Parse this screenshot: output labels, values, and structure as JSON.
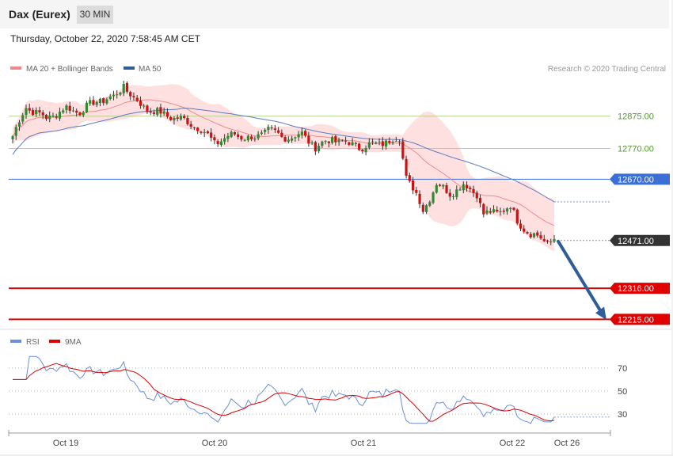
{
  "header": {
    "instrument": "Dax (Eurex)",
    "timeframe": "30 MIN",
    "datetime": "Thursday, October 22, 2020 7:58:45 AM CET"
  },
  "legend": {
    "ma20": "MA 20 + Bollinger Bands",
    "ma50": "MA 50",
    "credit": "Research © 2020 Trading Central"
  },
  "rsi_legend": {
    "rsi": "RSI",
    "ma9": "9MA"
  },
  "colors": {
    "bull": "#2e8b2e",
    "bear": "#cc1111",
    "ma20": "#f08a8a",
    "band": "#ffd6d6",
    "ma50": "#5a7bbf",
    "resistance_green": "#b5d48a",
    "pivot_blue": "#3b6fd6",
    "support_red": "#e00000",
    "last_price": "#333333",
    "rsi": "#6b8ed8",
    "rsi_ma": "#e00000",
    "arrow": "#2f5d9a"
  },
  "chart_data": [
    {
      "type": "candlestick",
      "ylim": [
        12185,
        12990
      ],
      "x_ticks": [
        "Oct 19",
        "Oct 20",
        "Oct 21",
        "Oct 22",
        "Oct 26"
      ],
      "levels": [
        {
          "value": 12875,
          "label": "12875.00",
          "kind": "resistance"
        },
        {
          "value": 12770,
          "label": "12770.00",
          "kind": "resistance"
        },
        {
          "value": 12670,
          "label": "12670.00",
          "kind": "pivot"
        },
        {
          "value": 12316,
          "label": "12316.00",
          "kind": "support"
        },
        {
          "value": 12215,
          "label": "12215.00",
          "kind": "support"
        }
      ],
      "last_price": {
        "value": 12471,
        "label": "12471.00"
      },
      "projection": {
        "from": 12471,
        "to": 12215
      }
    },
    {
      "type": "line",
      "series": [
        {
          "name": "RSI"
        },
        {
          "name": "9MA"
        }
      ],
      "ylim": [
        15,
        85
      ],
      "y_ticks": [
        "70",
        "50",
        "30"
      ],
      "reference_lines": [
        70,
        50,
        30
      ]
    }
  ]
}
